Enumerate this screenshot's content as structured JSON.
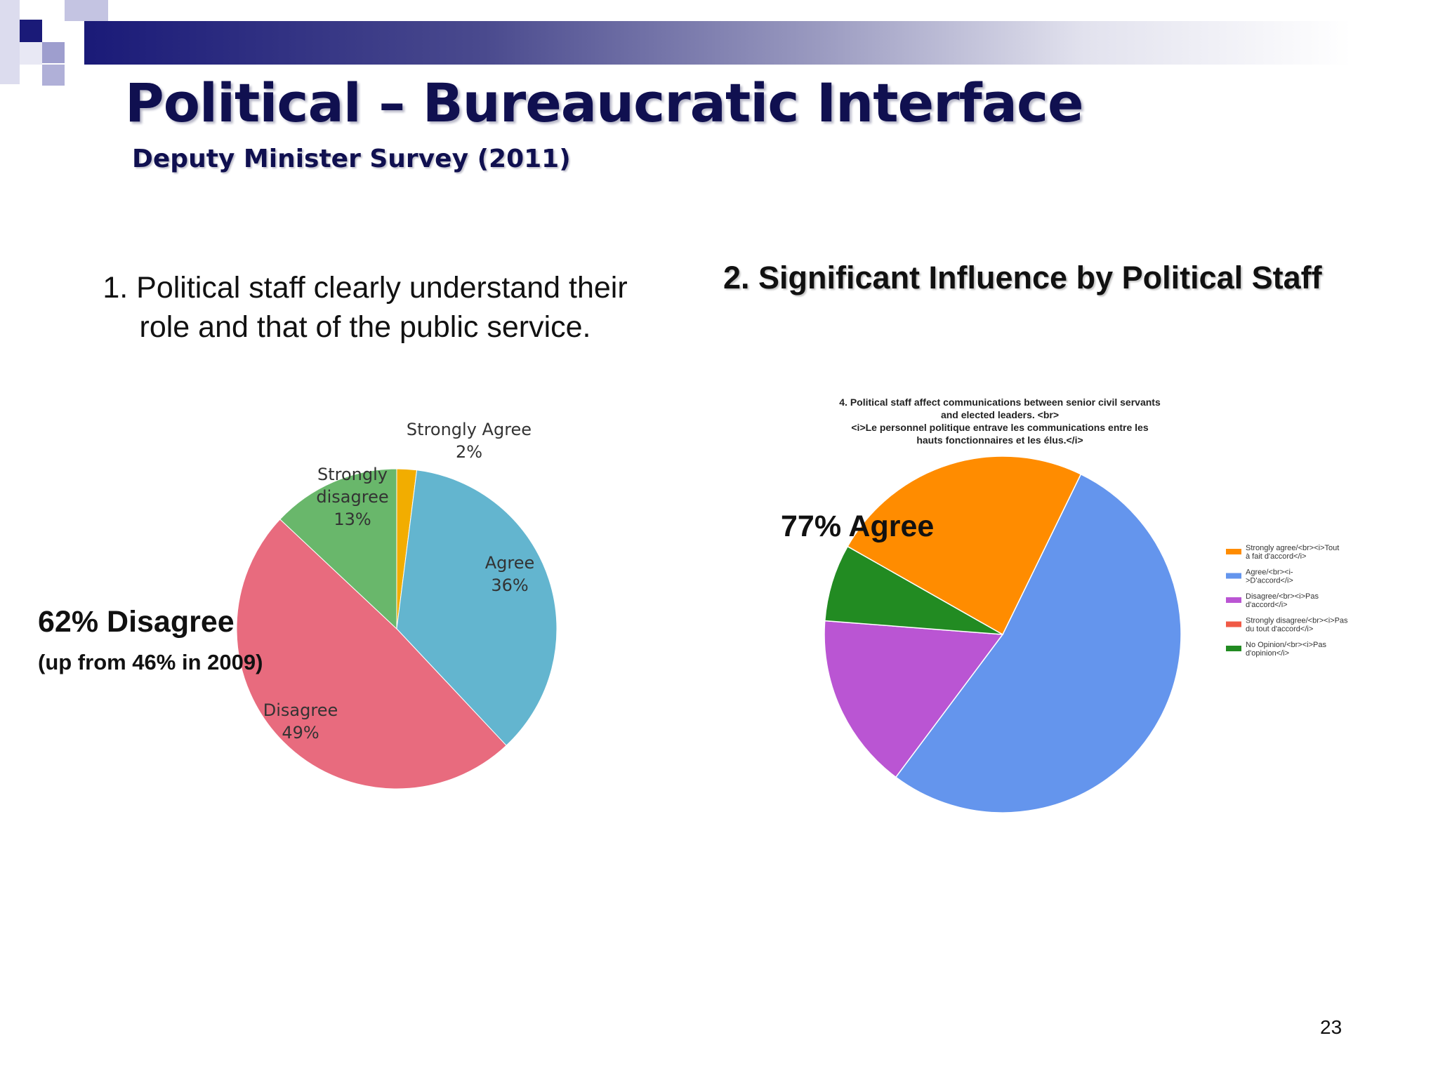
{
  "slide": {
    "title": "Political – Bureaucratic Interface",
    "subtitle": "Deputy Minister Survey (2011)",
    "page_number": "23",
    "q1_heading": [
      "1. Political staff clearly understand their",
      "role and that of the public service."
    ],
    "q2_heading": "2. Significant Influence by Political Staff",
    "callout_disagree": "62% Disagree",
    "callout_disagree_note": "(up from 46% in 2009)",
    "callout_agree": "77% Agree",
    "colors": {
      "header_dark": "#1a1a78",
      "title": "#101050"
    }
  },
  "chart_data": [
    {
      "type": "pie",
      "title": "",
      "slices": [
        {
          "label": [
            "Strongly Agree",
            "2%"
          ],
          "value": 2,
          "color": "#f2ad00"
        },
        {
          "label": [
            "Agree",
            "36%"
          ],
          "value": 36,
          "color": "#63b5cf"
        },
        {
          "label": [
            "Disagree",
            "49%"
          ],
          "value": 49,
          "color": "#e86b7e"
        },
        {
          "label": [
            "Strongly",
            "disagree",
            "13%"
          ],
          "value": 13,
          "color": "#69b76b"
        }
      ]
    },
    {
      "type": "pie",
      "title": [
        "4. Political staff affect communications between senior civil servants",
        "and elected leaders. <br>",
        "<i>Le personnel politique entrave les communications entre les",
        "hauts fonctionnaires et les élus.</i>"
      ],
      "legend_position": "right",
      "slices": [
        {
          "label": [
            "Strongly agree/<br><i>Tout",
            "à fait d'accord</i>"
          ],
          "value": 24,
          "color": "#ff8c00"
        },
        {
          "label": [
            "Agree/<br><i-",
            ">D'accord</i>"
          ],
          "value": 53,
          "color": "#6495ed"
        },
        {
          "label": [
            "Disagree/<br><i>Pas",
            "d'accord</i>"
          ],
          "value": 16,
          "color": "#ba55d3"
        },
        {
          "label": [
            "Strongly disagree/<br><i>Pas",
            "du tout d'accord</i>"
          ],
          "value": 0,
          "color": "#f05a46"
        },
        {
          "label": [
            "No Opinion/<br><i>Pas",
            "d'opinion</i>"
          ],
          "value": 7,
          "color": "#228b22"
        }
      ],
      "drawing_order": [
        1,
        2,
        4,
        0
      ]
    }
  ]
}
